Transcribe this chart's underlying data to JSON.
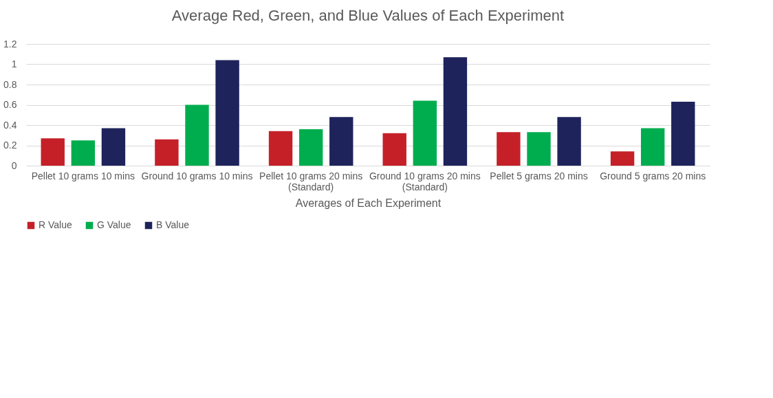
{
  "chart_data": {
    "type": "bar",
    "title": "Average Red, Green, and Blue Values of Each Experiment",
    "xlabel": "Averages of Each Experiment",
    "categories": [
      "Pellet 10 grams 10 mins",
      "Ground 10 grams 10 mins",
      "Pellet 10 grams 20 mins (Standard)",
      "Ground 10 grams 20 mins (Standard)",
      "Pellet 5 grams 20 mins",
      "Ground 5 grams 20 mins"
    ],
    "series": [
      {
        "name": "R Value",
        "color": "#c52028",
        "values": [
          0.27,
          0.26,
          0.34,
          0.32,
          0.33,
          0.14
        ]
      },
      {
        "name": "G Value",
        "color": "#00ad4e",
        "values": [
          0.25,
          0.6,
          0.36,
          0.64,
          0.33,
          0.37
        ]
      },
      {
        "name": "B Value",
        "color": "#1f235b",
        "values": [
          0.37,
          1.04,
          0.48,
          1.07,
          0.48,
          0.63
        ]
      }
    ],
    "ylim": [
      0,
      1.2
    ],
    "yticks": [
      0,
      0.2,
      0.4,
      0.6,
      0.8,
      1,
      1.2
    ],
    "grid": "y",
    "legend": "bottom"
  }
}
